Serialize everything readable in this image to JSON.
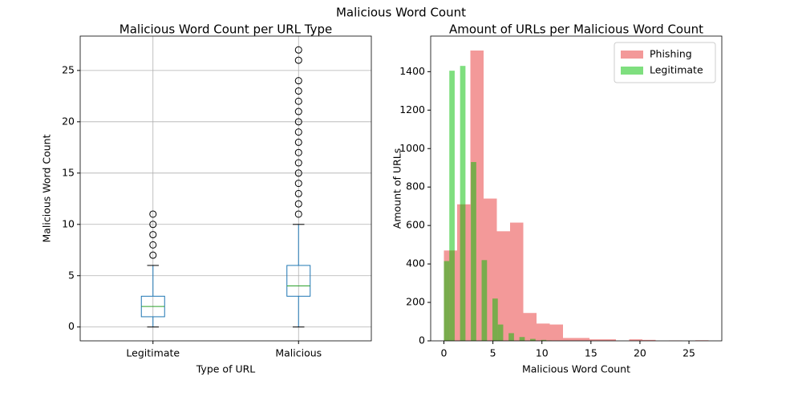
{
  "title": "Malicious Word Count",
  "chart_data": [
    {
      "type": "box",
      "title": "Malicious Word Count per URL Type",
      "xlabel": "Type of URL",
      "ylabel": "Malicious Word Count",
      "categories": [
        "Legitimate",
        "Malicious"
      ],
      "boxes": [
        {
          "min": 0,
          "q1": 1,
          "median": 2,
          "q3": 3,
          "max": 6,
          "outliers": [
            7,
            8,
            9,
            10,
            11
          ]
        },
        {
          "min": 0,
          "q1": 3,
          "median": 4,
          "q3": 6,
          "max": 10,
          "outliers": [
            11,
            12,
            13,
            14,
            15,
            16,
            17,
            18,
            19,
            20,
            21,
            22,
            23,
            24,
            26,
            27
          ]
        }
      ],
      "color": "#1f77b4",
      "median_color": "#2ca02c",
      "ylim": [
        -1.35,
        28.35
      ],
      "yticks": [
        0,
        5,
        10,
        15,
        20,
        25
      ],
      "grid": true
    },
    {
      "type": "histogram",
      "title": "Amount of URLs per Malicious Word Count",
      "xlabel": "Malicious Word Count",
      "ylabel": "Amount of URLs",
      "series": [
        {
          "name": "Phishing",
          "color": "#f08080",
          "alpha": 0.8,
          "bins": [
            0,
            1.35,
            2.7,
            4.05,
            5.4,
            6.75,
            8.1,
            9.45,
            10.8,
            12.15,
            13.5,
            14.85,
            16.2,
            17.55,
            18.9,
            20.25,
            21.6,
            22.95,
            24.3,
            25.65,
            27
          ],
          "values": [
            470,
            710,
            1510,
            740,
            570,
            615,
            145,
            90,
            85,
            15,
            15,
            8,
            8,
            0,
            8,
            5,
            0,
            2,
            0,
            3
          ]
        },
        {
          "name": "Legitimate",
          "color": "#00c000",
          "alpha": 0.5,
          "bins": [
            0,
            0.55,
            1.1,
            1.65,
            2.2,
            2.75,
            3.3,
            3.85,
            4.4,
            4.95,
            5.5,
            6.05,
            6.6,
            7.15,
            7.7,
            8.25,
            8.8,
            9.35,
            9.9,
            10.45,
            11
          ],
          "values": [
            415,
            1405,
            0,
            1430,
            0,
            930,
            0,
            420,
            0,
            220,
            85,
            0,
            40,
            0,
            20,
            0,
            10,
            0,
            5,
            2
          ]
        }
      ],
      "xlim": [
        -1.35,
        28.35
      ],
      "xticks": [
        0,
        5,
        10,
        15,
        20,
        25
      ],
      "ylim": [
        0,
        1585
      ],
      "yticks": [
        0,
        200,
        400,
        600,
        800,
        1000,
        1200,
        1400
      ],
      "legend": "upper right"
    }
  ]
}
